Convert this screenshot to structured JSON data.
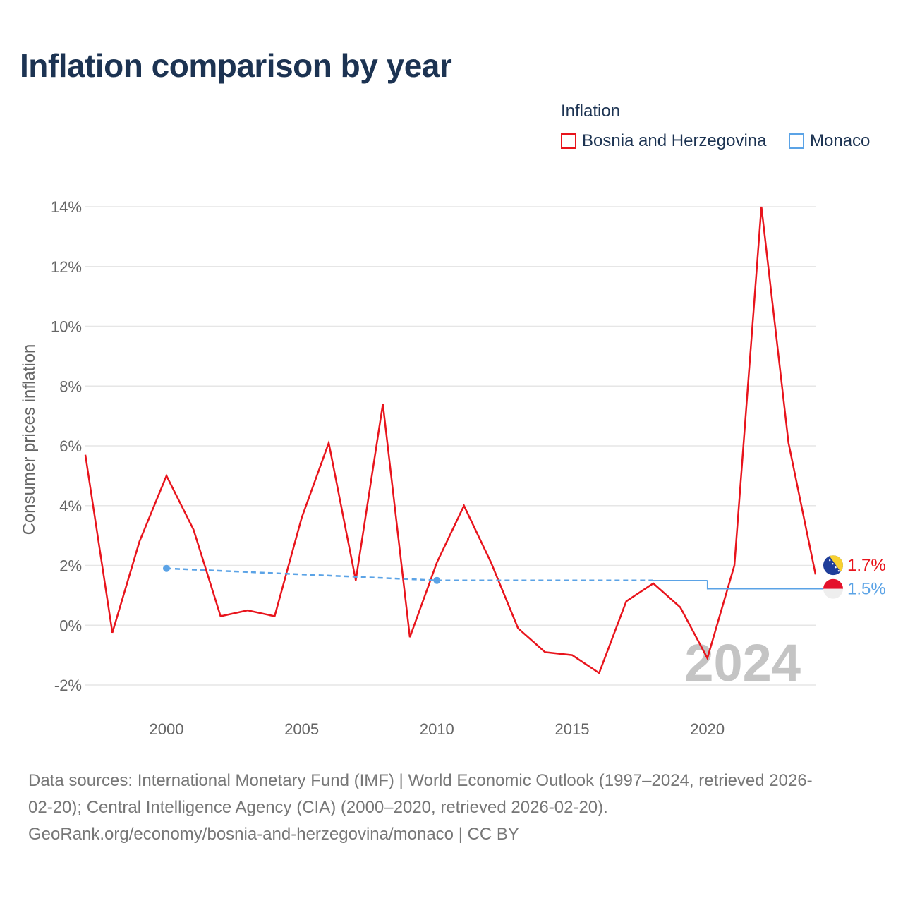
{
  "title": "Inflation comparison by year",
  "legend": {
    "title": "Inflation",
    "items": [
      {
        "label": "Bosnia and Herzegovina",
        "color": "#e8141c"
      },
      {
        "label": "Monaco",
        "color": "#5ba3e6"
      }
    ]
  },
  "year_watermark": "2024",
  "footer": {
    "line1": "Data sources: International Monetary Fund (IMF) | World Economic Outlook (1997–2024, retrieved 2026-",
    "line2": "02-20); Central Intelligence Agency (CIA) (2000–2020, retrieved 2026-02-20).",
    "line3": "GeoRank.org/economy/bosnia-and-herzegovina/monaco | CC BY"
  },
  "chart_data": {
    "type": "line",
    "title": "Inflation comparison by year",
    "xlabel": "",
    "ylabel": "Consumer prices inflation",
    "xlim": [
      1997,
      2024
    ],
    "ylim": [
      -2.5,
      14.5
    ],
    "x_ticks": [
      2000,
      2005,
      2010,
      2015,
      2020
    ],
    "y_ticks": [
      -2,
      0,
      2,
      4,
      6,
      8,
      10,
      12,
      14
    ],
    "y_tick_labels": [
      "-2%",
      "0%",
      "2%",
      "4%",
      "6%",
      "8%",
      "10%",
      "12%",
      "14%"
    ],
    "grid": true,
    "legend_position": "top-right",
    "series": [
      {
        "name": "Bosnia and Herzegovina",
        "color": "#e8141c",
        "x": [
          1997,
          1998,
          1999,
          2000,
          2001,
          2002,
          2003,
          2004,
          2005,
          2006,
          2007,
          2008,
          2009,
          2010,
          2011,
          2012,
          2013,
          2014,
          2015,
          2016,
          2017,
          2018,
          2019,
          2020,
          2021,
          2022,
          2023,
          2024
        ],
        "values": [
          5.7,
          -0.25,
          2.8,
          5.0,
          3.2,
          0.3,
          0.5,
          0.3,
          3.6,
          6.1,
          1.5,
          7.4,
          -0.4,
          2.1,
          4.0,
          2.1,
          -0.1,
          -0.9,
          -1.0,
          -1.6,
          0.8,
          1.4,
          0.6,
          -1.1,
          2.0,
          14.0,
          6.1,
          1.7
        ],
        "end_label": "1.7%"
      },
      {
        "name": "Monaco",
        "color": "#5ba3e6",
        "x": [
          2000,
          2010,
          2018,
          2020,
          2024
        ],
        "values": [
          1.9,
          1.5,
          1.5,
          1.5,
          1.5
        ],
        "end_label": "1.5%"
      }
    ]
  }
}
